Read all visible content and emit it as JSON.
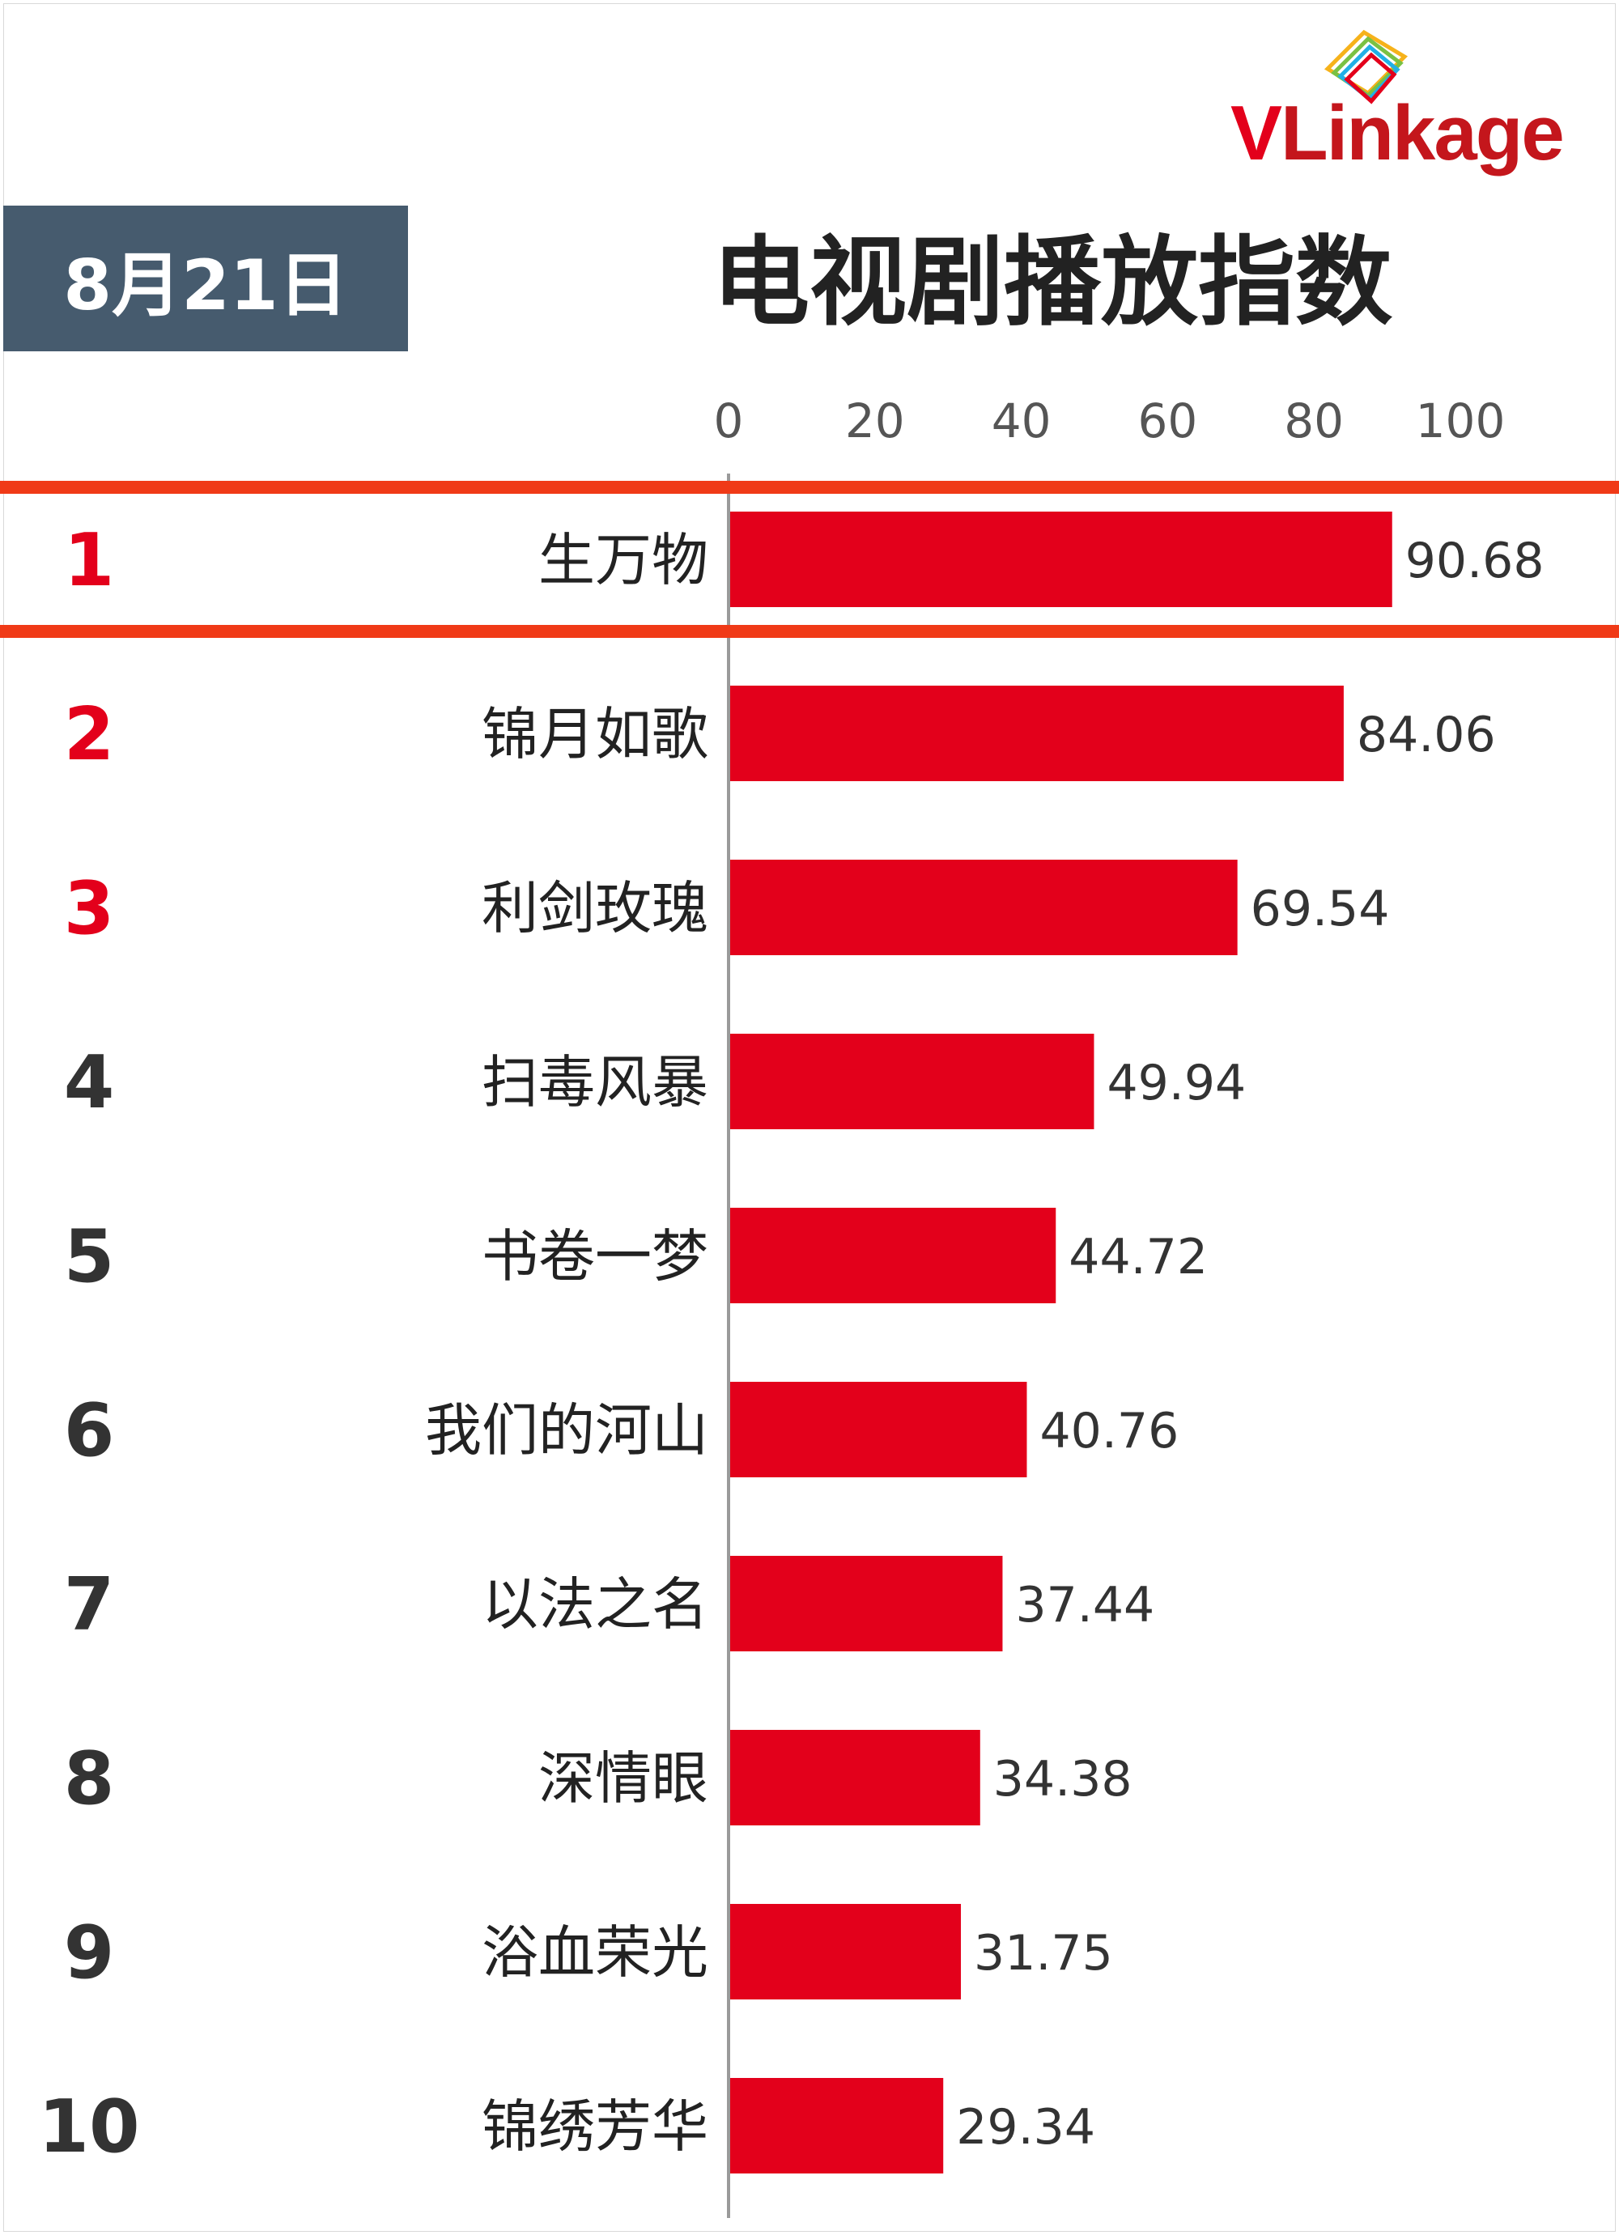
{
  "header": {
    "date_label": "8月21日",
    "logo_text_v": "V",
    "logo_text_rest": "Linkage"
  },
  "chart_data": {
    "type": "bar",
    "orientation": "horizontal",
    "title": "电视剧播放指数",
    "xlim": [
      0,
      100
    ],
    "x_ticks": [
      "0",
      "20",
      "40",
      "60",
      "80",
      "100"
    ],
    "ranks": [
      "1",
      "2",
      "3",
      "4",
      "5",
      "6",
      "7",
      "8",
      "9",
      "10"
    ],
    "categories": [
      "生万物",
      "锦月如歌",
      "利剑玫瑰",
      "扫毒风暴",
      "书卷一梦",
      "我们的河山",
      "以法之名",
      "深情眼",
      "浴血荣光",
      "锦绣芳华"
    ],
    "values": [
      90.68,
      84.06,
      69.54,
      49.94,
      44.72,
      40.76,
      37.44,
      34.38,
      31.75,
      29.34
    ],
    "value_labels": [
      "90.68",
      "84.06",
      "69.54",
      "49.94",
      "44.72",
      "40.76",
      "37.44",
      "34.38",
      "31.75",
      "29.34"
    ],
    "bar_color": "#e3001b",
    "top_rank_color": "#e3001b",
    "rank_color": "#333333",
    "highlight_color": "#f03a17",
    "highlight_rank": 1,
    "grid": false
  }
}
